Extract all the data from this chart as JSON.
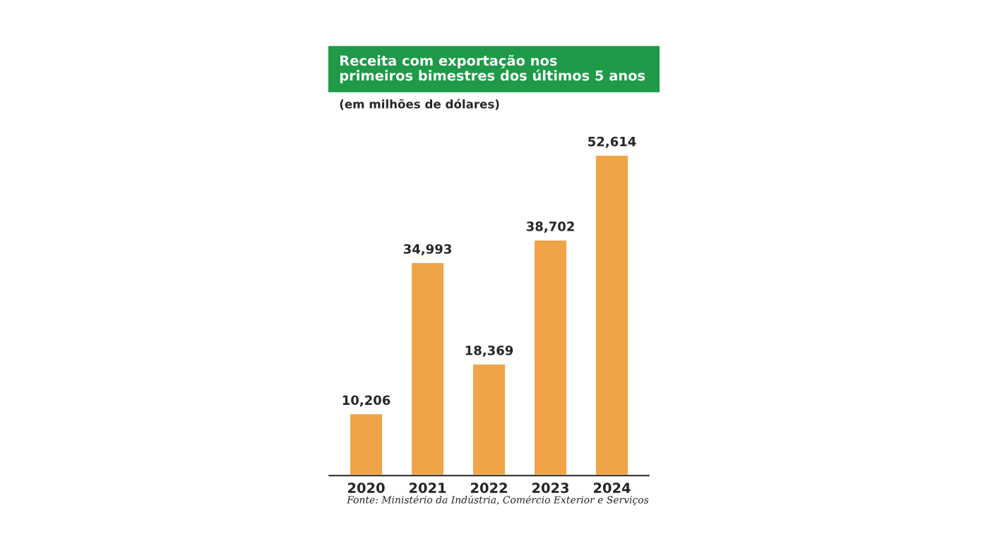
{
  "chart_data": {
    "type": "bar",
    "title": "Receita com exportação nos primeiros bimestres dos últimos 5 anos",
    "subtitle": "(em milhões de dólares)",
    "categories": [
      "2020",
      "2021",
      "2022",
      "2023",
      "2024"
    ],
    "values": [
      10206,
      34993,
      18369,
      38702,
      52614
    ],
    "value_labels": [
      "10,206",
      "34,993",
      "18,369",
      "38,702",
      "52,614"
    ],
    "color": "#f0a448",
    "annotations": [
      "Fonte: Ministério da Indústria, Comércio Exterior e Serviços"
    ],
    "grid": false,
    "legend": false,
    "tick_labels": "x"
  }
}
